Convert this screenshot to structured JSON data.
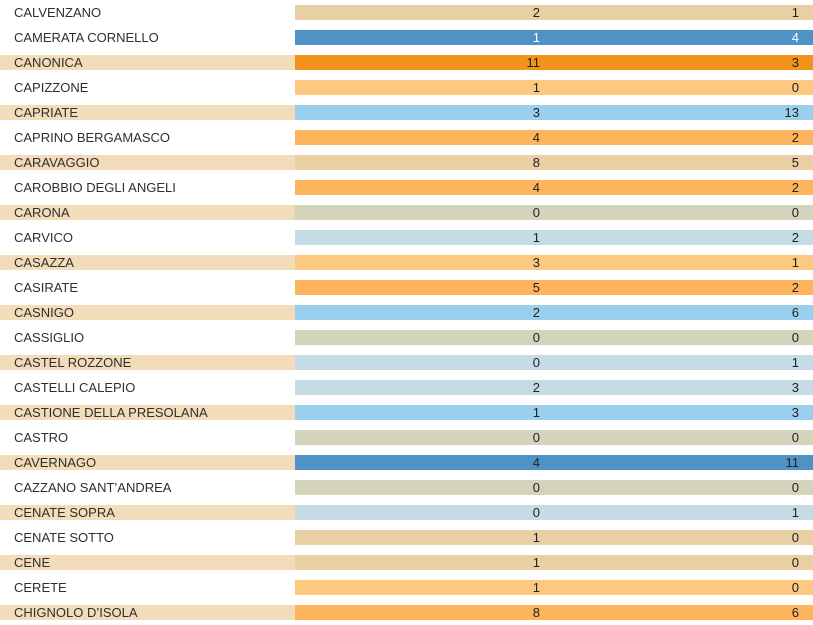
{
  "label_font_size": 13,
  "value_font_size": 13,
  "label_text_color": "#2f2f2f",
  "value_text_color_dark": "#222222",
  "value_text_color_light": "#ffffff",
  "colors": {
    "beige_light": "#f2dcba",
    "beige_dark": "#e8cfa4",
    "blue_deep": "#4e92c6",
    "orange_deep": "#f2941c",
    "orange_mid": "#fdb45c",
    "orange_light": "#fdc87f",
    "grey_khaki": "#d4d4bd",
    "blue_sky": "#9bcfee",
    "blue_pale": "#c5dbe6",
    "white": "#ffffff"
  },
  "rows": [
    {
      "label": "CALVENZANO",
      "v1": 2,
      "v2": 1,
      "label_bg": "white",
      "val_bg": "beige_dark",
      "val_text": "dark"
    },
    {
      "label": "CAMERATA CORNELLO",
      "v1": 1,
      "v2": 4,
      "label_bg": "white",
      "val_bg": "blue_deep",
      "val_text": "light"
    },
    {
      "label": "CANONICA",
      "v1": 11,
      "v2": 3,
      "label_bg": "beige_light",
      "val_bg": "orange_deep",
      "val_text": "dark"
    },
    {
      "label": "CAPIZZONE",
      "v1": 1,
      "v2": 0,
      "label_bg": "white",
      "val_bg": "orange_light",
      "val_text": "dark"
    },
    {
      "label": "CAPRIATE",
      "v1": 3,
      "v2": 13,
      "label_bg": "beige_light",
      "val_bg": "blue_sky",
      "val_text": "dark"
    },
    {
      "label": "CAPRINO BERGAMASCO",
      "v1": 4,
      "v2": 2,
      "label_bg": "white",
      "val_bg": "orange_mid",
      "val_text": "dark"
    },
    {
      "label": "CARAVAGGIO",
      "v1": 8,
      "v2": 5,
      "label_bg": "beige_light",
      "val_bg": "beige_dark",
      "val_text": "dark"
    },
    {
      "label": "CAROBBIO DEGLI ANGELI",
      "v1": 4,
      "v2": 2,
      "label_bg": "white",
      "val_bg": "orange_mid",
      "val_text": "dark"
    },
    {
      "label": "CARONA",
      "v1": 0,
      "v2": 0,
      "label_bg": "beige_light",
      "val_bg": "grey_khaki",
      "val_text": "dark"
    },
    {
      "label": "CARVICO",
      "v1": 1,
      "v2": 2,
      "label_bg": "white",
      "val_bg": "blue_pale",
      "val_text": "dark"
    },
    {
      "label": "CASAZZA",
      "v1": 3,
      "v2": 1,
      "label_bg": "beige_light",
      "val_bg": "orange_light",
      "val_text": "dark"
    },
    {
      "label": "CASIRATE",
      "v1": 5,
      "v2": 2,
      "label_bg": "white",
      "val_bg": "orange_mid",
      "val_text": "dark"
    },
    {
      "label": "CASNIGO",
      "v1": 2,
      "v2": 6,
      "label_bg": "beige_light",
      "val_bg": "blue_sky",
      "val_text": "dark"
    },
    {
      "label": "CASSIGLIO",
      "v1": 0,
      "v2": 0,
      "label_bg": "white",
      "val_bg": "grey_khaki",
      "val_text": "dark"
    },
    {
      "label": "CASTEL ROZZONE",
      "v1": 0,
      "v2": 1,
      "label_bg": "beige_light",
      "val_bg": "blue_pale",
      "val_text": "dark"
    },
    {
      "label": "CASTELLI CALEPIO",
      "v1": 2,
      "v2": 3,
      "label_bg": "white",
      "val_bg": "blue_pale",
      "val_text": "dark"
    },
    {
      "label": "CASTIONE DELLA PRESOLANA",
      "v1": 1,
      "v2": 3,
      "label_bg": "beige_light",
      "val_bg": "blue_sky",
      "val_text": "dark"
    },
    {
      "label": "CASTRO",
      "v1": 0,
      "v2": 0,
      "label_bg": "white",
      "val_bg": "grey_khaki",
      "val_text": "dark"
    },
    {
      "label": "CAVERNAGO",
      "v1": 4,
      "v2": 11,
      "label_bg": "beige_light",
      "val_bg": "blue_deep",
      "val_text": "dark"
    },
    {
      "label": "CAZZANO SANT’ANDREA",
      "v1": 0,
      "v2": 0,
      "label_bg": "white",
      "val_bg": "grey_khaki",
      "val_text": "dark"
    },
    {
      "label": "CENATE SOPRA",
      "v1": 0,
      "v2": 1,
      "label_bg": "beige_light",
      "val_bg": "blue_pale",
      "val_text": "dark"
    },
    {
      "label": "CENATE SOTTO",
      "v1": 1,
      "v2": 0,
      "label_bg": "white",
      "val_bg": "beige_dark",
      "val_text": "dark"
    },
    {
      "label": "CENE",
      "v1": 1,
      "v2": 0,
      "label_bg": "beige_light",
      "val_bg": "beige_dark",
      "val_text": "dark"
    },
    {
      "label": "CERETE",
      "v1": 1,
      "v2": 0,
      "label_bg": "white",
      "val_bg": "orange_light",
      "val_text": "dark"
    },
    {
      "label": "CHIGNOLO D’ISOLA",
      "v1": 8,
      "v2": 6,
      "label_bg": "beige_light",
      "val_bg": "orange_mid",
      "val_text": "dark"
    }
  ]
}
